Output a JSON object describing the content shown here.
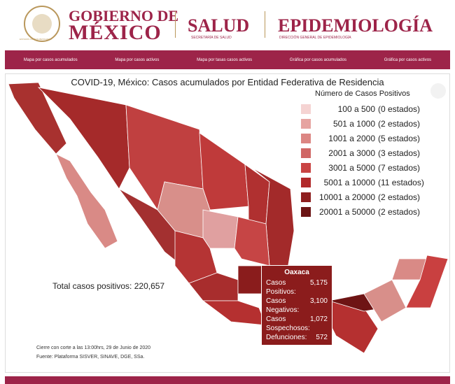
{
  "header": {
    "seal": "ESTADOS UNIDOS MEXICANOS",
    "gobierno": "GOBIERNO DE",
    "mexico": "MÉXICO",
    "salud": "SALUD",
    "salud_sub": "SECRETARÍA DE SALUD",
    "epi": "EPIDEMIOLOGÍA",
    "epi_sub": "DIRECCIÓN GENERAL DE EPIDEMIOLOGÍA"
  },
  "nav": [
    "Mapa por casos acumulados",
    "Mapa por casos activos",
    "Mapa por tasas casos activos",
    "Gráfica por casos acumulados",
    "Gráfica por casos activos"
  ],
  "map": {
    "title": "COVID-19, México: Casos acumulados por Entidad Federativa de Residencia",
    "legend": {
      "title": "Número de Casos Positivos",
      "items": [
        {
          "range": "100 a 500",
          "count": "(0 estados)",
          "color": "#f5d3d2"
        },
        {
          "range": "501 a 1000",
          "count": "(2 estados)",
          "color": "#e6a4a1"
        },
        {
          "range": "1001 a 2000",
          "count": "(5 estados)",
          "color": "#dc8683"
        },
        {
          "range": "2001 a 3000",
          "count": "(3 estados)",
          "color": "#d06765"
        },
        {
          "range": "3001 a 5000",
          "count": "(7 estados)",
          "color": "#c94443"
        },
        {
          "range": "5001 a 10000",
          "count": "(11 estados)",
          "color": "#b1292a"
        },
        {
          "range": "10001 a 20000",
          "count": "(2 estados)",
          "color": "#8e1f1f"
        },
        {
          "range": "20001 a 50000",
          "count": "(2 estados)",
          "color": "#6b1414"
        }
      ]
    },
    "total": "Total casos positivos: 220,657",
    "tooltip": {
      "title": "Oaxaca",
      "rows": [
        [
          "Casos Positivos:",
          "5,175"
        ],
        [
          "Casos Negativos:",
          "3,100"
        ],
        [
          "Casos Sospechosos:",
          "1,072"
        ],
        [
          "Defunciones:",
          "572"
        ]
      ]
    },
    "notes": [
      "Cierre con corte a las 13:00hrs, 29 de Junio de 2020",
      "Fuente: Plataforma SISVER, SINAVE, DGE, SSa."
    ]
  }
}
